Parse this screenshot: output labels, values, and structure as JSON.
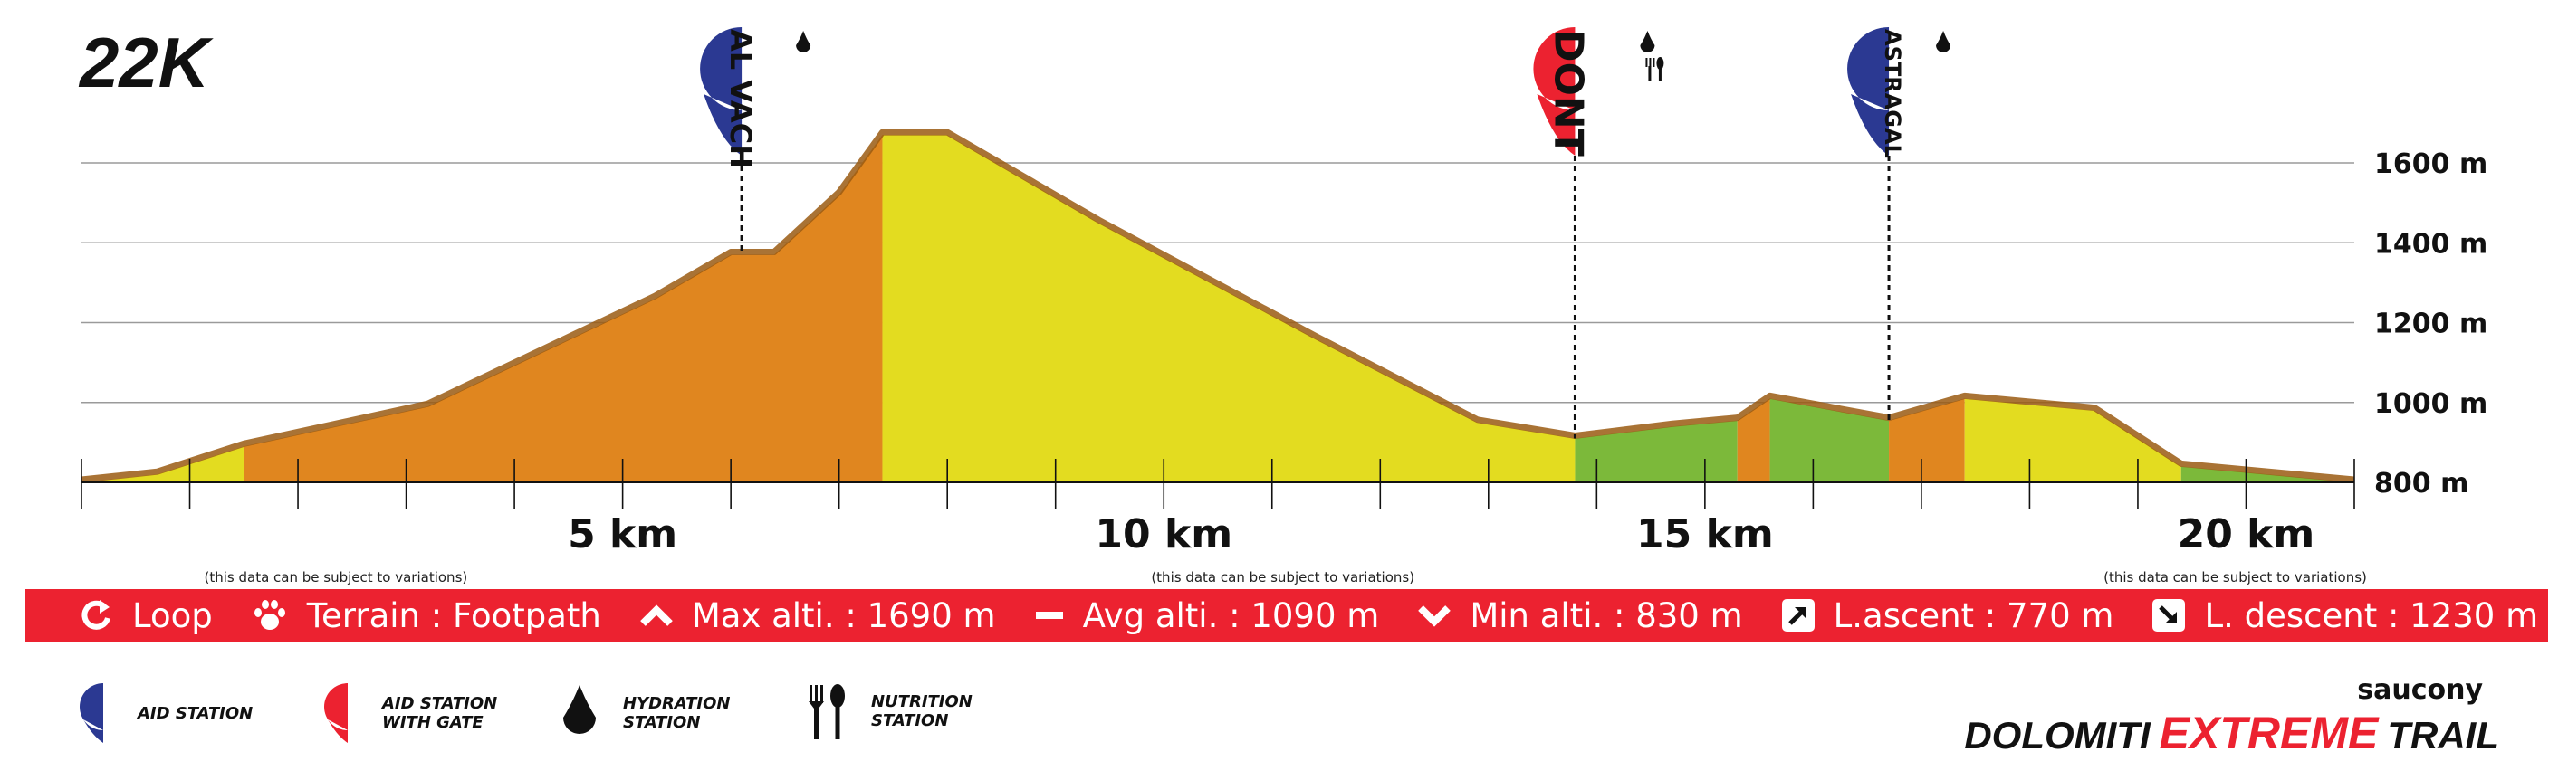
{
  "race_title": "22K",
  "chart_data": {
    "type": "area",
    "title": "22K",
    "xlabel": "",
    "ylabel": "",
    "x_unit": "km",
    "y_unit": "m",
    "xlim": [
      0,
      21
    ],
    "ylim": [
      800,
      1690
    ],
    "y_ticks": [
      800,
      1000,
      1200,
      1400,
      1600
    ],
    "y_tick_labels": [
      "800 m",
      "1000 m",
      "1200 m",
      "1400 m",
      "1600 m"
    ],
    "x_ticks": [
      5,
      10,
      15,
      20
    ],
    "x_tick_labels": [
      "5 km",
      "10 km",
      "15 km",
      "20 km"
    ],
    "grid": true,
    "profile": [
      {
        "km": 0.0,
        "alt": 800
      },
      {
        "km": 0.7,
        "alt": 820
      },
      {
        "km": 1.5,
        "alt": 890
      },
      {
        "km": 3.2,
        "alt": 990
      },
      {
        "km": 5.3,
        "alt": 1260
      },
      {
        "km": 6.0,
        "alt": 1370
      },
      {
        "km": 6.4,
        "alt": 1370
      },
      {
        "km": 7.0,
        "alt": 1520
      },
      {
        "km": 7.4,
        "alt": 1670
      },
      {
        "km": 8.0,
        "alt": 1670
      },
      {
        "km": 9.4,
        "alt": 1450
      },
      {
        "km": 11.4,
        "alt": 1160
      },
      {
        "km": 12.9,
        "alt": 950
      },
      {
        "km": 13.8,
        "alt": 910
      },
      {
        "km": 14.7,
        "alt": 940
      },
      {
        "km": 15.3,
        "alt": 955
      },
      {
        "km": 15.6,
        "alt": 1010
      },
      {
        "km": 16.7,
        "alt": 955
      },
      {
        "km": 17.4,
        "alt": 1010
      },
      {
        "km": 18.6,
        "alt": 980
      },
      {
        "km": 19.4,
        "alt": 840
      },
      {
        "km": 21.0,
        "alt": 800
      }
    ],
    "segments": [
      {
        "from": 0.0,
        "to": 1.5,
        "color": "#e3dc20"
      },
      {
        "from": 1.5,
        "to": 7.4,
        "color": "#e0861f"
      },
      {
        "from": 7.4,
        "to": 13.8,
        "color": "#e3dc20"
      },
      {
        "from": 13.8,
        "to": 15.3,
        "color": "#7cb93a"
      },
      {
        "from": 15.3,
        "to": 15.6,
        "color": "#e0861f"
      },
      {
        "from": 15.6,
        "to": 16.7,
        "color": "#7cb93a"
      },
      {
        "from": 16.7,
        "to": 17.4,
        "color": "#e0861f"
      },
      {
        "from": 17.4,
        "to": 19.4,
        "color": "#e3dc20"
      },
      {
        "from": 19.4,
        "to": 21.0,
        "color": "#7cb93a"
      }
    ],
    "stations": [
      {
        "name": "AL VACH",
        "km": 6.1,
        "type": "aid",
        "color": "#2b3992",
        "services": [
          "hydration"
        ]
      },
      {
        "name": "DONT",
        "km": 13.8,
        "type": "aid-gate",
        "color": "#ec2230",
        "services": [
          "hydration",
          "nutrition"
        ]
      },
      {
        "name": "ASTRAGAL",
        "km": 16.7,
        "type": "aid",
        "color": "#2b3992",
        "services": [
          "hydration"
        ]
      }
    ],
    "notes": [
      "(this data can be subject to variations)",
      "(this data can be subject to variations)",
      "(this data can be subject to variations)"
    ]
  },
  "stats": {
    "loop": "Loop",
    "terrain": "Terrain : Footpath",
    "max_alt": "Max alti. : 1690 m",
    "avg_alt": "Avg alti. : 1090 m",
    "min_alt": "Min alti. : 830 m",
    "ascent": "L.ascent : 770 m",
    "descent": "L. descent : 1230 m"
  },
  "legend": {
    "aid_station": "AID STATION",
    "aid_station_gate": "AID STATION WITH GATE",
    "hydration": "HYDRATION STATION",
    "nutrition": "NUTRITION STATION"
  },
  "brand": {
    "sponsor": "saucony",
    "word1": "DOLOMITI",
    "word2": "EXTREME",
    "word3": "TRAIL"
  },
  "colors": {
    "red": "#ec2230",
    "blue": "#2b3992",
    "orange": "#e0861f",
    "yellow": "#e3dc20",
    "green": "#7cb93a",
    "edge": "#9a5a12"
  }
}
